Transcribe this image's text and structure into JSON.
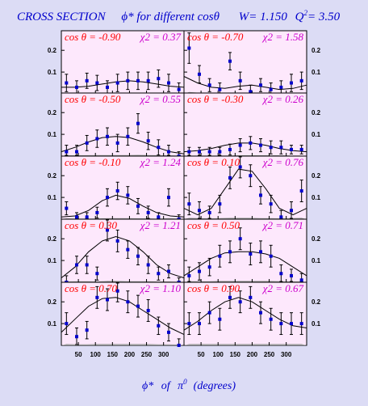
{
  "header": {
    "title_main": "CROSS SECTION",
    "title_phi": "ϕ* for different cosθ",
    "w_value": "W= 1.150",
    "q2_prefix": "Q",
    "q2_sup": "2",
    "q2_value": "= 3.50"
  },
  "xaxis": {
    "label_phi": "ϕ*",
    "label_of": "of",
    "label_pi": "π",
    "label_pi_sup": "0",
    "label_units": "(degrees)"
  },
  "colors": {
    "background": "#dcdcf5",
    "panel": "#fde8fc",
    "points": "#0000cc",
    "errorbars": "#000000",
    "curve": "#000000",
    "cos_label": "#ff0000",
    "chi_label": "#cc00cc",
    "shade": "#a0a0a0"
  },
  "chart_data": {
    "type": "scatter",
    "xlim": [
      0,
      360
    ],
    "ylim": [
      0,
      0.29
    ],
    "xticks": [
      50,
      100,
      150,
      200,
      250,
      300
    ],
    "yticks": [
      0.1,
      0.2
    ],
    "grid": false,
    "panels": [
      {
        "cos": "cos θ = -0.90",
        "chi": "χ2 = 0.37",
        "x": [
          15,
          45,
          75,
          105,
          135,
          165,
          195,
          225,
          255,
          285,
          315,
          345
        ],
        "y": [
          0.05,
          0.03,
          0.06,
          0.05,
          0.03,
          0.05,
          0.06,
          0.06,
          0.06,
          0.07,
          0.05,
          0.02
        ],
        "err": [
          0.04,
          0.03,
          0.035,
          0.035,
          0.03,
          0.04,
          0.04,
          0.04,
          0.04,
          0.04,
          0.04,
          0.03
        ],
        "curve": [
          0.03,
          0.03,
          0.035,
          0.045,
          0.055,
          0.06,
          0.055,
          0.045,
          0.035,
          0.03
        ]
      },
      {
        "cos": "cos θ = -0.70",
        "chi": "χ2 = 1.58",
        "x": [
          15,
          45,
          75,
          105,
          135,
          165,
          195,
          225,
          255,
          285,
          315,
          345
        ],
        "y": [
          0.21,
          0.09,
          0.04,
          0.02,
          0.15,
          0.06,
          0.01,
          0.04,
          0.02,
          0.03,
          0.05,
          0.06
        ],
        "err": [
          0.07,
          0.04,
          0.03,
          0.03,
          0.04,
          0.04,
          0.03,
          0.03,
          0.03,
          0.03,
          0.04,
          0.04
        ],
        "curve": [
          0.08,
          0.05,
          0.03,
          0.025,
          0.035,
          0.04,
          0.03,
          0.02,
          0.025,
          0.04
        ]
      },
      {
        "cos": "cos θ = -0.50",
        "chi": "χ2 = 0.55",
        "x": [
          15,
          45,
          75,
          105,
          135,
          165,
          195,
          225,
          255,
          285,
          315,
          345
        ],
        "y": [
          0.02,
          0.02,
          0.06,
          0.08,
          0.09,
          0.06,
          0.09,
          0.15,
          0.07,
          0.04,
          0.02,
          0.0
        ],
        "err": [
          0.03,
          0.03,
          0.035,
          0.04,
          0.04,
          0.04,
          0.04,
          0.045,
          0.04,
          0.035,
          0.03,
          0.02
        ],
        "curve": [
          0.02,
          0.04,
          0.065,
          0.085,
          0.09,
          0.085,
          0.065,
          0.04,
          0.02,
          0.01
        ]
      },
      {
        "cos": "cos θ = -0.30",
        "chi": "χ2 = 0.26",
        "x": [
          15,
          45,
          75,
          105,
          135,
          165,
          195,
          225,
          255,
          285,
          315,
          345
        ],
        "y": [
          0.02,
          0.02,
          0.02,
          0.02,
          0.03,
          0.05,
          0.06,
          0.05,
          0.04,
          0.04,
          0.03,
          0.03
        ],
        "err": [
          0.02,
          0.02,
          0.02,
          0.02,
          0.025,
          0.03,
          0.03,
          0.03,
          0.03,
          0.03,
          0.02,
          0.02
        ],
        "curve": [
          0.02,
          0.025,
          0.035,
          0.05,
          0.06,
          0.06,
          0.05,
          0.035,
          0.025,
          0.02
        ]
      },
      {
        "cos": "cos θ = -0.10",
        "chi": "χ2 = 1.24",
        "x": [
          15,
          45,
          75,
          105,
          135,
          165,
          195,
          225,
          255,
          285,
          315,
          345
        ],
        "y": [
          0.05,
          0.01,
          0.01,
          0.03,
          0.1,
          0.13,
          0.11,
          0.06,
          0.03,
          0.01,
          0.1,
          0.0
        ],
        "err": [
          0.03,
          0.02,
          0.02,
          0.025,
          0.04,
          0.04,
          0.04,
          0.035,
          0.03,
          0.02,
          0.04,
          0.02
        ],
        "curve": [
          0.01,
          0.015,
          0.04,
          0.085,
          0.11,
          0.095,
          0.06,
          0.03,
          0.015,
          0.01
        ]
      },
      {
        "cos": "cos θ = 0.10",
        "chi": "χ2 = 0.76",
        "x": [
          15,
          45,
          75,
          105,
          135,
          165,
          195,
          225,
          255,
          285,
          315,
          345
        ],
        "y": [
          0.07,
          0.04,
          0.03,
          0.07,
          0.19,
          0.24,
          0.2,
          0.11,
          0.07,
          0.01,
          0.04,
          0.13
        ],
        "err": [
          0.05,
          0.04,
          0.03,
          0.04,
          0.05,
          0.05,
          0.05,
          0.04,
          0.04,
          0.03,
          0.04,
          0.05
        ],
        "curve": [
          0.05,
          0.02,
          0.05,
          0.14,
          0.23,
          0.22,
          0.14,
          0.05,
          0.02,
          0.05
        ]
      },
      {
        "cos": "cos θ = 0.30",
        "chi": "χ2 = 1.21",
        "x": [
          15,
          45,
          75,
          105,
          135,
          165,
          195,
          225,
          255,
          285,
          315,
          345
        ],
        "y": [
          0.0,
          0.08,
          0.08,
          0.04,
          0.24,
          0.19,
          0.15,
          0.12,
          0.08,
          0.04,
          0.05,
          0.0
        ],
        "err": [
          0.03,
          0.04,
          0.04,
          0.03,
          0.05,
          0.05,
          0.04,
          0.04,
          0.04,
          0.03,
          0.03,
          0.02
        ],
        "curve": [
          0.02,
          0.07,
          0.14,
          0.19,
          0.21,
          0.19,
          0.14,
          0.08,
          0.04,
          0.02
        ]
      },
      {
        "cos": "cos θ = 0.50",
        "chi": "χ2 = 0.71",
        "x": [
          15,
          45,
          75,
          105,
          135,
          165,
          195,
          225,
          255,
          285,
          315,
          345
        ],
        "y": [
          0.03,
          0.05,
          0.07,
          0.12,
          0.14,
          0.2,
          0.13,
          0.14,
          0.12,
          0.04,
          0.03,
          0.01
        ],
        "err": [
          0.04,
          0.04,
          0.04,
          0.05,
          0.05,
          0.05,
          0.05,
          0.05,
          0.05,
          0.04,
          0.03,
          0.03
        ],
        "curve": [
          0.03,
          0.07,
          0.11,
          0.135,
          0.14,
          0.14,
          0.13,
          0.11,
          0.07,
          0.03
        ]
      },
      {
        "cos": "cos θ = 0.70",
        "chi": "χ2 = 1.10",
        "x": [
          15,
          45,
          75,
          105,
          135,
          165,
          195,
          225,
          255,
          285,
          315,
          345
        ],
        "y": [
          0.1,
          0.04,
          0.07,
          0.22,
          0.21,
          0.25,
          0.2,
          0.18,
          0.16,
          0.09,
          0.06,
          0.0
        ],
        "err": [
          0.05,
          0.04,
          0.04,
          0.05,
          0.05,
          0.05,
          0.05,
          0.05,
          0.05,
          0.04,
          0.04,
          0.03
        ],
        "curve": [
          0.06,
          0.12,
          0.18,
          0.215,
          0.22,
          0.2,
          0.16,
          0.12,
          0.08,
          0.05
        ]
      },
      {
        "cos": "cos θ = 0.90",
        "chi": "χ2 = 0.67",
        "x": [
          15,
          45,
          75,
          105,
          135,
          165,
          195,
          225,
          255,
          285,
          315,
          345
        ],
        "y": [
          0.1,
          0.1,
          0.15,
          0.12,
          0.22,
          0.2,
          0.22,
          0.15,
          0.12,
          0.1,
          0.1,
          0.1
        ],
        "err": [
          0.05,
          0.05,
          0.05,
          0.05,
          0.05,
          0.05,
          0.05,
          0.05,
          0.05,
          0.05,
          0.05,
          0.05
        ],
        "curve": [
          0.07,
          0.11,
          0.16,
          0.2,
          0.22,
          0.2,
          0.16,
          0.12,
          0.09,
          0.08
        ]
      }
    ]
  }
}
